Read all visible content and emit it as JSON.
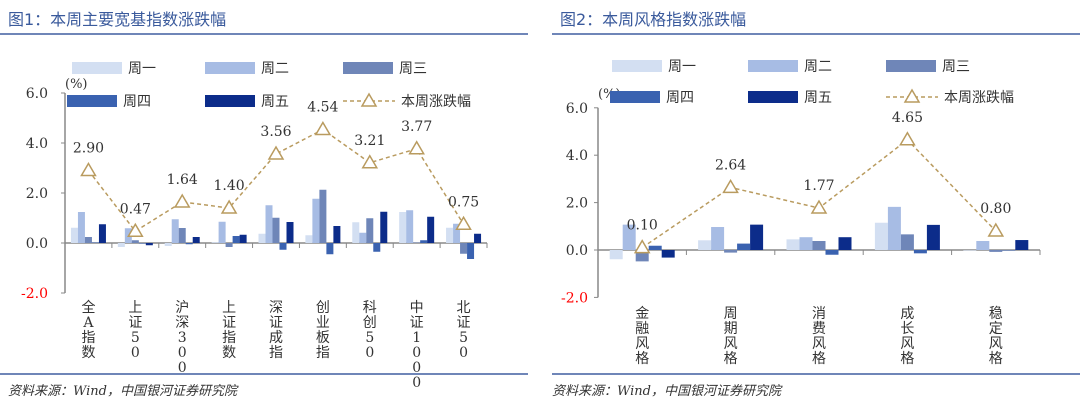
{
  "chart_data": [
    {
      "type": "bar",
      "title": "图1：本周主要宽基指数涨跌幅",
      "unit_label": "(%)",
      "ylim": [
        -2.0,
        6.0
      ],
      "yticks": [
        "6.0",
        "4.0",
        "2.0",
        "0.0",
        "-2.0"
      ],
      "categories": [
        "全A指数",
        "上证50",
        "沪深300",
        "上证指数",
        "深证成指",
        "创业板指",
        "科创50",
        "中证1000",
        "北证50"
      ],
      "series": [
        {
          "name": "周一",
          "color": "#d3dff2",
          "values": [
            0.61,
            -0.16,
            -0.12,
            0.03,
            0.37,
            0.31,
            0.83,
            1.24,
            0.61
          ]
        },
        {
          "name": "周二",
          "color": "#a7bce4",
          "values": [
            1.24,
            0.59,
            0.95,
            0.85,
            1.51,
            1.77,
            0.41,
            1.31,
            0.77
          ]
        },
        {
          "name": "周三",
          "color": "#6f86b8",
          "values": [
            0.24,
            0.11,
            0.6,
            -0.16,
            1.01,
            2.13,
            0.99,
            0.02,
            -0.43
          ]
        },
        {
          "name": "周四",
          "color": "#3a62b0",
          "values": [
            0.02,
            0.0,
            -0.05,
            0.28,
            -0.27,
            -0.45,
            -0.35,
            0.11,
            -0.64
          ]
        },
        {
          "name": "周五",
          "color": "#0c2c8a",
          "values": [
            0.75,
            -0.09,
            0.24,
            0.33,
            0.84,
            0.68,
            1.25,
            1.05,
            0.37
          ]
        }
      ],
      "line": {
        "name": "本周涨跌幅",
        "color": "#b99b5f",
        "values": [
          2.9,
          0.47,
          1.64,
          1.4,
          3.56,
          4.54,
          3.21,
          3.77,
          0.75
        ],
        "labels": [
          "2.90",
          "0.47",
          "1.64",
          "1.40",
          "3.56",
          "4.54",
          "3.21",
          "3.77",
          "0.75"
        ]
      },
      "legend": "top",
      "grid": false,
      "source": "资料来源：Wind，中国银河证券研究院"
    },
    {
      "type": "bar",
      "title": "图2：本周风格指数涨跌幅",
      "unit_label": "(%)",
      "ylim": [
        -2.0,
        6.0
      ],
      "yticks": [
        "6.0",
        "4.0",
        "2.0",
        "0.0",
        "-2.0"
      ],
      "categories": [
        "金融风格",
        "周期风格",
        "消费风格",
        "成长风格",
        "稳定风格"
      ],
      "series": [
        {
          "name": "周一",
          "color": "#d3dff2",
          "values": [
            -0.39,
            0.41,
            0.45,
            1.15,
            0.0
          ]
        },
        {
          "name": "周二",
          "color": "#a7bce4",
          "values": [
            1.07,
            0.97,
            0.54,
            1.82,
            0.38
          ]
        },
        {
          "name": "周三",
          "color": "#6f86b8",
          "values": [
            -0.48,
            -0.11,
            0.38,
            0.66,
            -0.08
          ]
        },
        {
          "name": "周四",
          "color": "#3a62b0",
          "values": [
            0.18,
            0.27,
            -0.2,
            -0.14,
            0.0
          ]
        },
        {
          "name": "周五",
          "color": "#0c2c8a",
          "values": [
            -0.32,
            1.07,
            0.54,
            1.06,
            0.42
          ]
        }
      ],
      "line": {
        "name": "本周涨跌幅",
        "color": "#b99b5f",
        "values": [
          0.1,
          2.64,
          1.77,
          4.65,
          0.8
        ],
        "labels": [
          "0.10",
          "2.64",
          "1.77",
          "4.65",
          "0.80"
        ]
      },
      "legend": "top",
      "grid": false,
      "source": "资料来源：Wind，中国银河证券研究院"
    }
  ],
  "negative_tick_color": "#ff0000"
}
